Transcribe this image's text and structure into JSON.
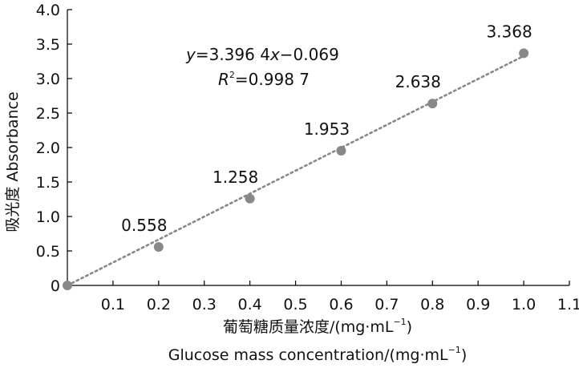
{
  "chart_data": {
    "type": "scatter",
    "title": "",
    "xlabel_zh": "葡萄糖质量浓度/(mg·mL",
    "xlabel_en": "Glucose mass concentration/(mg·mL",
    "unit_sup": "−1",
    "unit_close": ")",
    "ylabel": "吸光度 Absorbance",
    "xlim": [
      0,
      1.1
    ],
    "ylim": [
      0,
      4.0
    ],
    "xticks": [
      "0.1",
      "0.2",
      "0.3",
      "0.4",
      "0.5",
      "0.6",
      "0.7",
      "0.8",
      "0.9",
      "1.0",
      "1.1"
    ],
    "yticks": [
      "0",
      "0.5",
      "1.0",
      "1.5",
      "2.0",
      "2.5",
      "3.0",
      "3.5",
      "4.0"
    ],
    "grid": false,
    "points": [
      {
        "x": 0,
        "y": 0,
        "label": ""
      },
      {
        "x": 0.2,
        "y": 0.558,
        "label": "0.558"
      },
      {
        "x": 0.4,
        "y": 1.258,
        "label": "1.258"
      },
      {
        "x": 0.6,
        "y": 1.953,
        "label": "1.953"
      },
      {
        "x": 0.8,
        "y": 2.638,
        "label": "2.638"
      },
      {
        "x": 1.0,
        "y": 3.368,
        "label": "3.368"
      }
    ],
    "trendline": {
      "slope": 3.3964,
      "intercept": -0.069,
      "style": "dotted"
    },
    "equation": {
      "var_y": "y",
      "eq_mid": "=3.396 4",
      "var_x": "x",
      "eq_tail": "−0.069",
      "r_var": "R",
      "r_sup": "2",
      "r_value": "=0.998 7"
    },
    "colors": {
      "marker": "#888888",
      "trendline": "#888888",
      "axis": "#000000",
      "text": "#111111"
    }
  }
}
